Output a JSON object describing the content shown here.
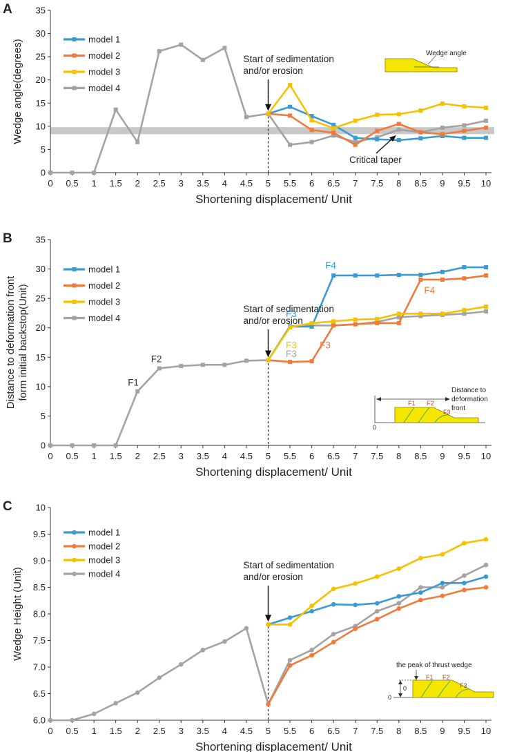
{
  "colors": {
    "model 1": "#3a9bd2",
    "model 2": "#f07a3a",
    "model 3": "#f7c100",
    "model 4": "#a3a3a3"
  },
  "chart_data": [
    {
      "id": "A",
      "type": "line",
      "panel_label": "A",
      "xlabel": "Shortening displacement/ Unit",
      "ylabel": "Wedge angle(degrees)",
      "xlim": [
        0,
        10
      ],
      "ylim": [
        0,
        35
      ],
      "x_ticks": [
        "0",
        "0.5",
        "1",
        "1.5",
        "2",
        "2.5",
        "3",
        "3.5",
        "4",
        "4.5",
        "5",
        "5.5",
        "6",
        "6.5",
        "7",
        "7.5",
        "8",
        "8.5",
        "9",
        "9.5",
        "10"
      ],
      "y_ticks": [
        "0",
        "5",
        "10",
        "15",
        "20",
        "25",
        "30",
        "35"
      ],
      "marker": "square",
      "band": {
        "y0": 8.3,
        "y1": 9.8
      },
      "series": [
        {
          "name": "model 1",
          "x": [
            5,
            5.5,
            6,
            6.5,
            7,
            7.5,
            8,
            8.5,
            9,
            9.5,
            10
          ],
          "values": [
            12.7,
            14.2,
            12.2,
            10.3,
            7.5,
            7.2,
            7.0,
            7.4,
            7.9,
            7.5,
            7.5
          ]
        },
        {
          "name": "model 2",
          "x": [
            5,
            5.5,
            6,
            6.5,
            7,
            7.5,
            8,
            8.5,
            9,
            9.5,
            10
          ],
          "values": [
            12.7,
            12.3,
            9.2,
            8.6,
            6.0,
            9.0,
            10.5,
            8.7,
            8.3,
            9.0,
            9.7
          ]
        },
        {
          "name": "model 3",
          "x": [
            5,
            5.5,
            6,
            6.5,
            7,
            7.5,
            8,
            8.5,
            9,
            9.5,
            10
          ],
          "values": [
            12.7,
            18.9,
            11.3,
            9.6,
            11.2,
            12.5,
            12.6,
            13.4,
            14.9,
            14.3,
            14.0
          ]
        },
        {
          "name": "model 4",
          "x": [
            0,
            0.5,
            1,
            1.5,
            2,
            2.5,
            3,
            3.5,
            4,
            4.5,
            5,
            5.5,
            6,
            6.5,
            7,
            7.5,
            8,
            8.5,
            9,
            9.5,
            10
          ],
          "values": [
            0,
            0,
            0,
            13.6,
            6.6,
            26.2,
            27.6,
            24.3,
            26.9,
            12.0,
            12.7,
            6.0,
            6.6,
            8.0,
            6.6,
            7.6,
            9.3,
            8.7,
            9.7,
            10.2,
            11.2
          ]
        }
      ],
      "annotations": {
        "start": "Start of sedimentation\nand/or erosion",
        "critical": "Critical taper",
        "inset": "Wedge angle"
      }
    },
    {
      "id": "B",
      "type": "line",
      "panel_label": "B",
      "xlabel": "Shortening displacement/ Unit",
      "ylabel": "Distance to deformation front\nform initial backstop(Unit)",
      "xlim": [
        0,
        10
      ],
      "ylim": [
        0,
        35
      ],
      "x_ticks": [
        "0",
        "0.5",
        "1",
        "1.5",
        "2",
        "2.5",
        "3",
        "3.5",
        "4",
        "4.5",
        "5",
        "5.5",
        "6",
        "6.5",
        "7",
        "7.5",
        "8",
        "8.5",
        "9",
        "9.5",
        "10"
      ],
      "y_ticks": [
        "0",
        "5",
        "10",
        "15",
        "20",
        "25",
        "30",
        "35"
      ],
      "marker": "square",
      "series": [
        {
          "name": "model 1",
          "x": [
            5,
            5.5,
            6,
            6.5,
            7,
            7.5,
            8,
            8.5,
            9,
            9.5,
            10
          ],
          "values": [
            14.5,
            20.2,
            20.2,
            28.9,
            28.9,
            28.9,
            29.0,
            29.0,
            29.5,
            30.3,
            30.3
          ]
        },
        {
          "name": "model 2",
          "x": [
            5,
            5.5,
            6,
            6.5,
            7,
            7.5,
            8,
            8.5,
            9,
            9.5,
            10
          ],
          "values": [
            14.5,
            14.2,
            14.3,
            20.4,
            20.6,
            20.8,
            20.8,
            28.2,
            28.2,
            28.4,
            28.9
          ]
        },
        {
          "name": "model 3",
          "x": [
            5,
            5.5,
            6,
            6.5,
            7,
            7.5,
            8,
            8.5,
            9,
            9.5,
            10
          ],
          "values": [
            14.5,
            20.1,
            20.8,
            21.1,
            21.4,
            21.5,
            22.4,
            22.4,
            22.4,
            23.0,
            23.6
          ]
        },
        {
          "name": "model 4",
          "x": [
            0,
            0.5,
            1,
            1.5,
            2,
            2.5,
            3,
            3.5,
            4,
            4.5,
            5,
            5.5,
            6,
            6.5,
            7,
            7.5,
            8,
            8.5,
            9,
            9.5,
            10
          ],
          "values": [
            0,
            0,
            0,
            0,
            9.2,
            13.1,
            13.5,
            13.7,
            13.7,
            14.4,
            14.5,
            20.3,
            20.4,
            20.4,
            20.6,
            21.0,
            21.8,
            22.0,
            22.2,
            22.4,
            22.8
          ]
        }
      ],
      "fault_labels": [
        {
          "text": "F1",
          "color": "#333333"
        },
        {
          "text": "F2",
          "color": "#333333"
        },
        {
          "text": "F3",
          "color": "#3a9bd2"
        },
        {
          "text": "F3",
          "color": "#f7c100"
        },
        {
          "text": "F3",
          "color": "#a3a3a3"
        },
        {
          "text": "F3",
          "color": "#f07a3a"
        },
        {
          "text": "F4",
          "color": "#3a9bd2"
        },
        {
          "text": "F4",
          "color": "#f07a3a"
        }
      ],
      "annotations": {
        "start": "Start of sedimentation\nand/or erosion",
        "inset": "Distance to\ndeformation\nfront",
        "inset_zero": "0",
        "inset_faults": [
          "F1",
          "F2",
          "F3"
        ]
      }
    },
    {
      "id": "C",
      "type": "line",
      "panel_label": "C",
      "xlabel": "Shortening displacement/ Unit",
      "ylabel": "Wedge Height (Unit)",
      "xlim": [
        0,
        10
      ],
      "ylim": [
        6.0,
        10
      ],
      "x_ticks": [
        "0",
        "0.5",
        "1",
        "1.5",
        "2",
        "2.5",
        "3",
        "3.5",
        "4",
        "4.5",
        "5",
        "5.5",
        "6",
        "6.5",
        "7",
        "7.5",
        "8",
        "8.5",
        "9",
        "9.5",
        "10"
      ],
      "y_ticks": [
        "6.0",
        "6.5",
        "7.0",
        "7.5",
        "8.0",
        "8.5",
        "9.0",
        "9.5",
        "10"
      ],
      "marker": "circle",
      "series": [
        {
          "name": "model 1",
          "x": [
            5,
            5.5,
            6,
            6.5,
            7,
            7.5,
            8,
            8.5,
            9,
            9.5,
            10
          ],
          "values": [
            7.8,
            7.93,
            8.05,
            8.18,
            8.17,
            8.2,
            8.33,
            8.4,
            8.58,
            8.58,
            8.7
          ]
        },
        {
          "name": "model 2",
          "x": [
            5,
            5.5,
            6,
            6.5,
            7,
            7.5,
            8,
            8.5,
            9,
            9.5,
            10
          ],
          "values": [
            6.3,
            7.03,
            7.22,
            7.47,
            7.72,
            7.9,
            8.1,
            8.26,
            8.34,
            8.45,
            8.5
          ]
        },
        {
          "name": "model 3",
          "x": [
            5,
            5.5,
            6,
            6.5,
            7,
            7.5,
            8,
            8.5,
            9,
            9.5,
            10
          ],
          "values": [
            7.8,
            7.8,
            8.15,
            8.47,
            8.57,
            8.7,
            8.85,
            9.05,
            9.12,
            9.33,
            9.4
          ]
        },
        {
          "name": "model 4",
          "x": [
            0,
            0.5,
            1,
            1.5,
            2,
            2.5,
            3,
            3.5,
            4,
            4.5,
            5,
            5.5,
            6,
            6.5,
            7,
            7.5,
            8,
            8.5,
            9,
            9.5,
            10
          ],
          "values": [
            6.0,
            6.0,
            6.12,
            6.32,
            6.52,
            6.8,
            7.05,
            7.32,
            7.48,
            7.73,
            6.3,
            7.13,
            7.32,
            7.62,
            7.77,
            8.05,
            8.2,
            8.5,
            8.5,
            8.72,
            8.92
          ]
        }
      ],
      "annotations": {
        "start": "Start of sedimentation\nand/or erosion",
        "inset": "the peak of thrust wedge",
        "inset_zero": "0",
        "inset_faults": [
          "F1",
          "F2",
          "F3"
        ]
      }
    }
  ]
}
